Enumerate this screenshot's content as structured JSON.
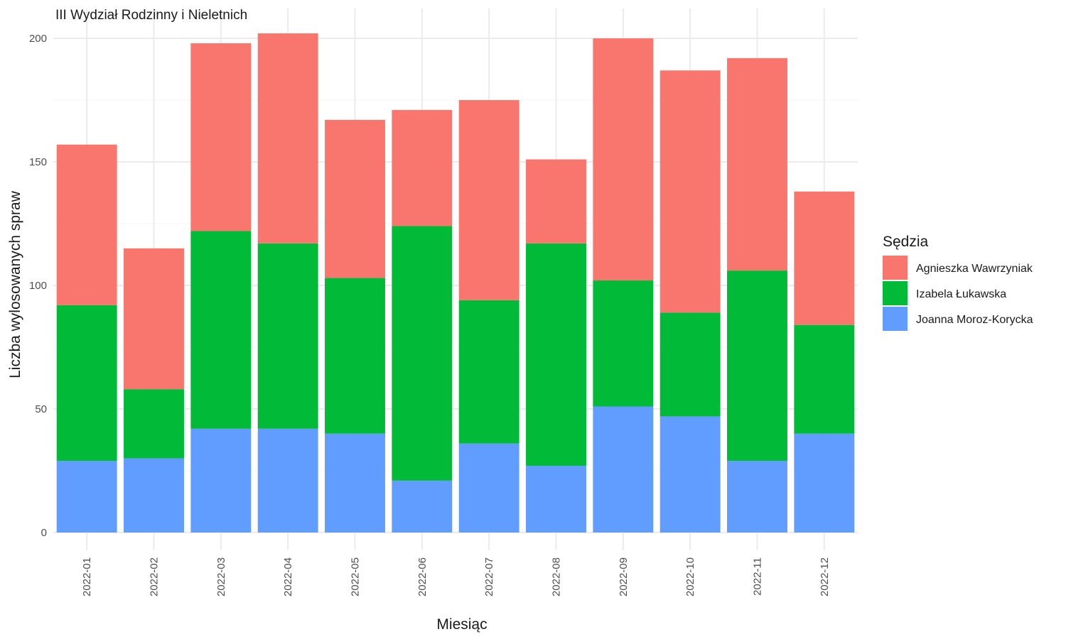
{
  "chart_data": {
    "type": "bar",
    "stacked": true,
    "title": "III Wydział Rodzinny i Nieletnich",
    "xlabel": "Miesiąc",
    "ylabel": "Liczba wylosowanych spraw",
    "ylim": [
      0,
      210
    ],
    "yticks": [
      "0",
      "50",
      "100",
      "150",
      "200"
    ],
    "grid": true,
    "categories": [
      "2022-01",
      "2022-02",
      "2022-03",
      "2022-04",
      "2022-05",
      "2022-06",
      "2022-07",
      "2022-08",
      "2022-09",
      "2022-10",
      "2022-11",
      "2022-12"
    ],
    "legend": {
      "title": "Sędzia",
      "position": "right"
    },
    "series": [
      {
        "name": "Agnieszka Wawrzyniak",
        "color": "#F8766D",
        "values": [
          65,
          57,
          76,
          85,
          64,
          47,
          81,
          34,
          98,
          98,
          86,
          54
        ]
      },
      {
        "name": "Izabela Łukawska",
        "color": "#00BA38",
        "values": [
          63,
          28,
          80,
          75,
          63,
          103,
          58,
          90,
          51,
          42,
          77,
          44
        ]
      },
      {
        "name": "Joanna Moroz-Korycka",
        "color": "#619CFF",
        "values": [
          29,
          30,
          42,
          42,
          40,
          21,
          36,
          27,
          51,
          47,
          29,
          40
        ]
      }
    ]
  }
}
